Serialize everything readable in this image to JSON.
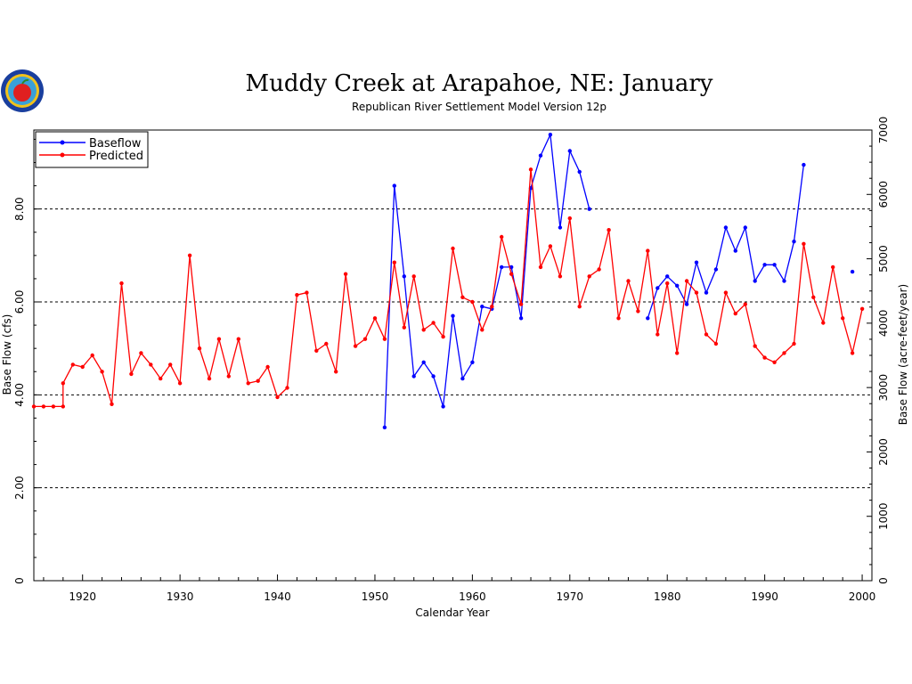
{
  "chart_data": {
    "type": "line",
    "title": "Muddy Creek at Arapahoe, NE: January",
    "subtitle": "Republican River Settlement Model Version 12p",
    "xlabel": "Calendar Year",
    "ylabel": "Base Flow (cfs)",
    "y2label": "Base Flow (acre-feet/year)",
    "xlim": [
      1915,
      2001
    ],
    "ylim": [
      0,
      9.7
    ],
    "y2lim": [
      0,
      7000
    ],
    "xticks": [
      "1920",
      "1930",
      "1940",
      "1950",
      "1960",
      "1970",
      "1980",
      "1990",
      "2000"
    ],
    "yticks": [
      "0",
      "2.00",
      "4.00",
      "6.00",
      "8.00"
    ],
    "y2ticks": [
      "0",
      "1000",
      "2000",
      "3000",
      "4000",
      "5000",
      "6000",
      "7000"
    ],
    "grid": "dashed horizontal at 2, 4, 6, 8",
    "legend_position": "top-left",
    "series": [
      {
        "name": "Baseflow",
        "color": "#0000ff",
        "points": [
          [
            1951,
            3.3
          ],
          [
            1952,
            8.5
          ],
          [
            1953,
            6.55
          ],
          [
            1954,
            4.4
          ],
          [
            1955,
            4.7
          ],
          [
            1956,
            4.4
          ],
          [
            1957,
            3.75
          ],
          [
            1958,
            5.7
          ],
          [
            1959,
            4.35
          ],
          [
            1960,
            4.7
          ],
          [
            1961,
            5.9
          ],
          [
            1962,
            5.85
          ],
          [
            1963,
            6.75
          ],
          [
            1964,
            6.75
          ],
          [
            1965,
            5.65
          ],
          [
            1966,
            8.45
          ],
          [
            1967,
            9.15
          ],
          [
            1968,
            9.6
          ],
          [
            1969,
            7.6
          ],
          [
            1970,
            9.25
          ],
          [
            1971,
            8.8
          ],
          [
            1972,
            8.0
          ],
          null,
          [
            1978,
            5.65
          ],
          [
            1979,
            6.3
          ],
          [
            1980,
            6.55
          ],
          [
            1981,
            6.35
          ],
          [
            1982,
            5.95
          ],
          [
            1983,
            6.85
          ],
          [
            1984,
            6.2
          ],
          [
            1985,
            6.7
          ],
          [
            1986,
            7.6
          ],
          [
            1987,
            7.1
          ],
          [
            1988,
            7.6
          ],
          [
            1989,
            6.45
          ],
          [
            1990,
            6.8
          ],
          [
            1991,
            6.8
          ],
          [
            1992,
            6.45
          ],
          [
            1993,
            7.3
          ],
          [
            1994,
            8.95
          ],
          null,
          [
            1999,
            6.65
          ]
        ]
      },
      {
        "name": "Predicted",
        "color": "#ff0000",
        "points": [
          [
            1915,
            3.75
          ],
          [
            1916,
            3.75
          ],
          [
            1917,
            3.75
          ],
          [
            1918,
            3.75
          ],
          [
            1918,
            4.25
          ],
          [
            1919,
            4.65
          ],
          [
            1920,
            4.6
          ],
          [
            1921,
            4.85
          ],
          [
            1922,
            4.5
          ],
          [
            1923,
            3.8
          ],
          [
            1924,
            6.4
          ],
          [
            1925,
            4.45
          ],
          [
            1926,
            4.9
          ],
          [
            1927,
            4.65
          ],
          [
            1928,
            4.35
          ],
          [
            1929,
            4.65
          ],
          [
            1930,
            4.25
          ],
          [
            1931,
            7.0
          ],
          [
            1932,
            5.0
          ],
          [
            1933,
            4.35
          ],
          [
            1934,
            5.2
          ],
          [
            1935,
            4.4
          ],
          [
            1936,
            5.2
          ],
          [
            1937,
            4.25
          ],
          [
            1938,
            4.3
          ],
          [
            1939,
            4.6
          ],
          [
            1940,
            3.95
          ],
          [
            1941,
            4.15
          ],
          [
            1942,
            6.15
          ],
          [
            1943,
            6.2
          ],
          [
            1944,
            4.95
          ],
          [
            1945,
            5.1
          ],
          [
            1946,
            4.5
          ],
          [
            1947,
            6.6
          ],
          [
            1948,
            5.05
          ],
          [
            1949,
            5.2
          ],
          [
            1950,
            5.65
          ],
          [
            1951,
            5.2
          ],
          [
            1952,
            6.85
          ],
          [
            1953,
            5.45
          ],
          [
            1954,
            6.55
          ],
          [
            1955,
            5.4
          ],
          [
            1956,
            5.55
          ],
          [
            1957,
            5.25
          ],
          [
            1958,
            7.15
          ],
          [
            1959,
            6.1
          ],
          [
            1960,
            6.0
          ],
          [
            1961,
            5.4
          ],
          [
            1962,
            5.9
          ],
          [
            1963,
            7.4
          ],
          [
            1964,
            6.6
          ],
          [
            1965,
            5.95
          ],
          [
            1966,
            8.85
          ],
          [
            1967,
            6.75
          ],
          [
            1968,
            7.2
          ],
          [
            1969,
            6.55
          ],
          [
            1970,
            7.8
          ],
          [
            1971,
            5.9
          ],
          [
            1972,
            6.55
          ],
          [
            1973,
            6.7
          ],
          [
            1974,
            7.55
          ],
          [
            1975,
            5.65
          ],
          [
            1976,
            6.45
          ],
          [
            1977,
            5.8
          ],
          [
            1978,
            7.1
          ],
          [
            1979,
            5.3
          ],
          [
            1980,
            6.4
          ],
          [
            1981,
            4.9
          ],
          [
            1982,
            6.45
          ],
          [
            1983,
            6.2
          ],
          [
            1984,
            5.3
          ],
          [
            1985,
            5.1
          ],
          [
            1986,
            6.2
          ],
          [
            1987,
            5.75
          ],
          [
            1988,
            5.95
          ],
          [
            1989,
            5.05
          ],
          [
            1990,
            4.8
          ],
          [
            1991,
            4.7
          ],
          [
            1992,
            4.9
          ],
          [
            1993,
            5.1
          ],
          [
            1994,
            7.25
          ],
          [
            1995,
            6.1
          ],
          [
            1996,
            5.55
          ],
          [
            1997,
            6.75
          ],
          [
            1998,
            5.65
          ],
          [
            1999,
            4.9
          ],
          [
            2000,
            5.85
          ]
        ]
      }
    ]
  }
}
